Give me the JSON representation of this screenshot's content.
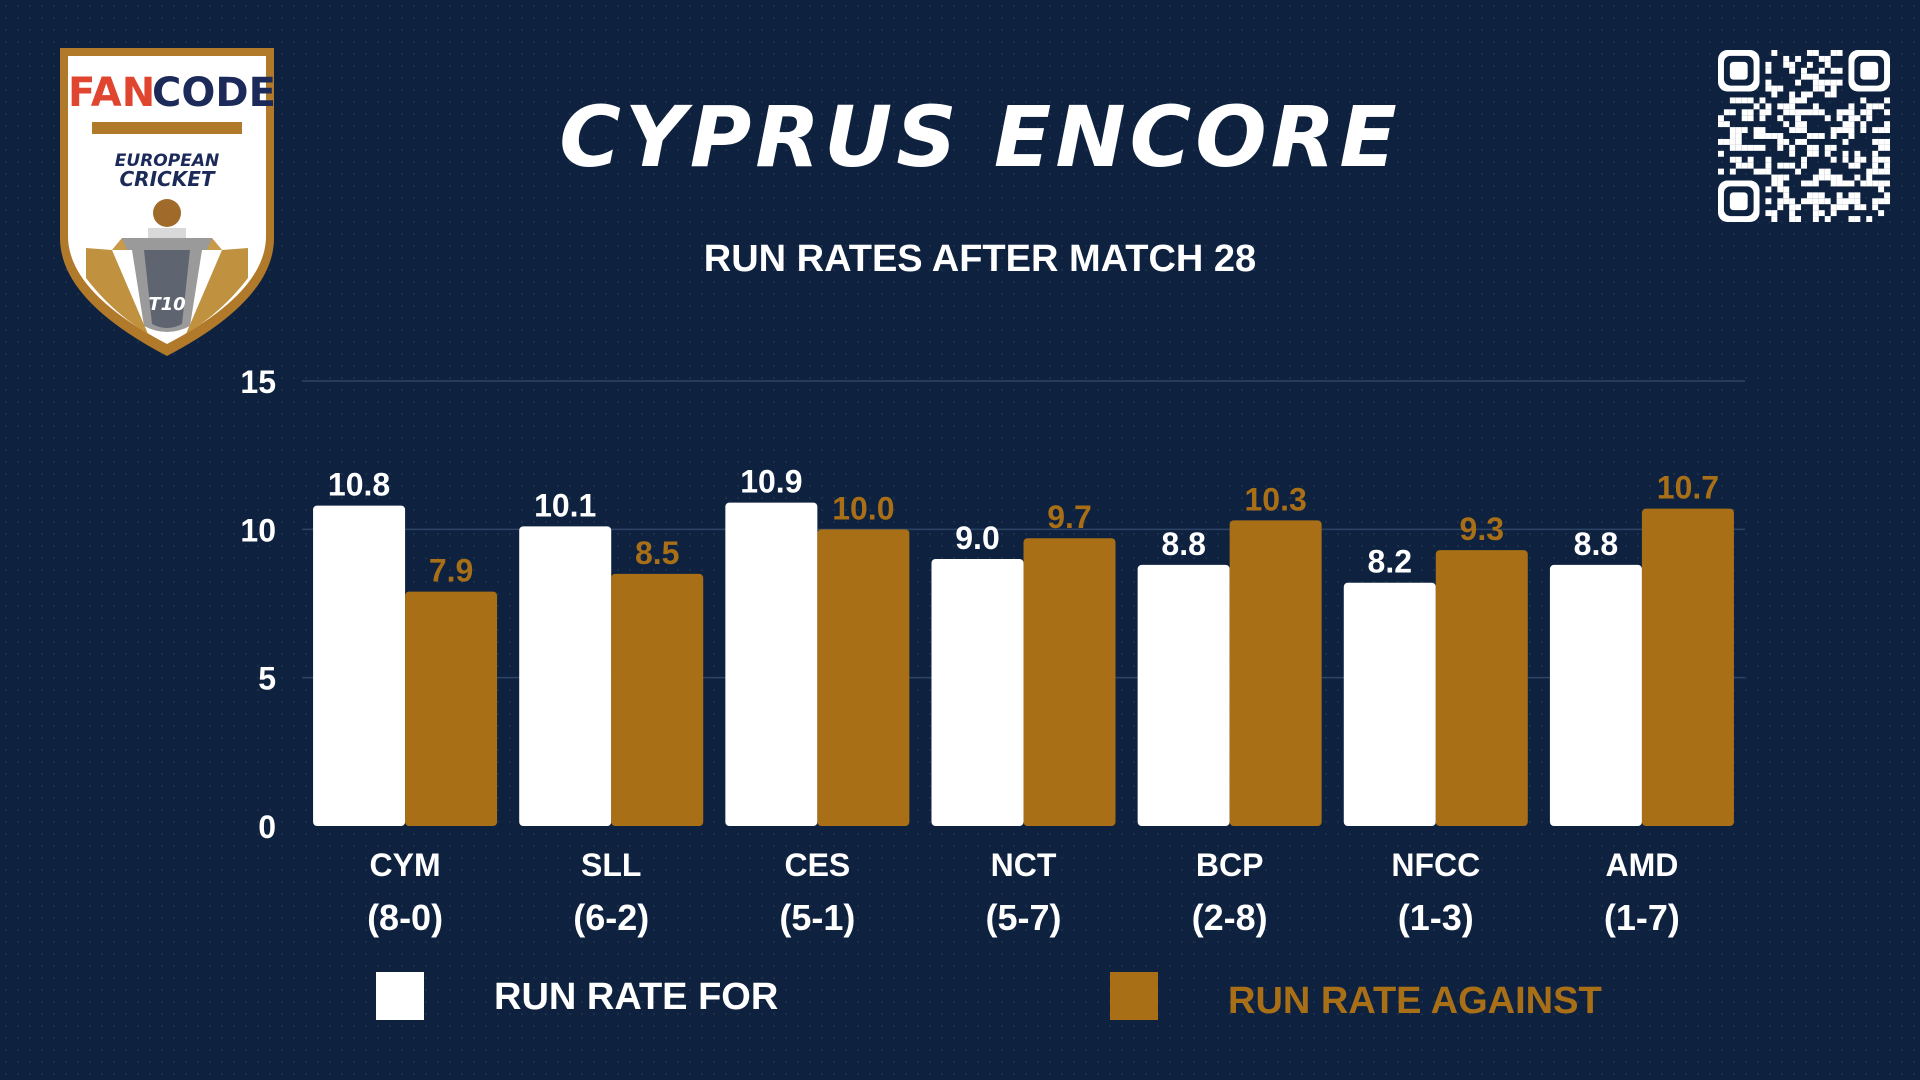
{
  "header": {
    "title": "CYPRUS ENCORE",
    "subtitle": "RUN RATES AFTER MATCH 28"
  },
  "logo": {
    "brand_fan": "FAN",
    "brand_code": "CODE",
    "line1": "EUROPEAN",
    "line2": "CRICKET",
    "badge": "T10",
    "icon": "trophy-shield-icon"
  },
  "qr": {
    "icon": "qr-code-icon"
  },
  "colors": {
    "background": "#0e2240",
    "for": "#ffffff",
    "against": "#a86f17",
    "grid": "#2e4466"
  },
  "chart_data": {
    "type": "bar",
    "title": "RUN RATES AFTER MATCH 28",
    "categories": [
      "CYM",
      "SLL",
      "CES",
      "NCT",
      "BCP",
      "NFCC",
      "AMD"
    ],
    "category_records": [
      "(8-0)",
      "(6-2)",
      "(5-1)",
      "(5-7)",
      "(2-8)",
      "(1-3)",
      "(1-7)"
    ],
    "series": [
      {
        "name": "RUN RATE FOR",
        "values": [
          10.8,
          10.1,
          10.9,
          9.0,
          8.8,
          8.2,
          8.8
        ],
        "labels": [
          "10.8",
          "10.1",
          "10.9",
          "9.0",
          "8.8",
          "8.2",
          "8.8"
        ]
      },
      {
        "name": "RUN RATE AGAINST",
        "values": [
          7.9,
          8.5,
          10.0,
          9.7,
          10.3,
          9.3,
          10.7
        ],
        "labels": [
          "7.9",
          "8.5",
          "10.0",
          "9.7",
          "10.3",
          "9.3",
          "10.7"
        ]
      }
    ],
    "ylim": [
      0,
      15
    ],
    "yticks": [
      0,
      5,
      10,
      15
    ],
    "grid": true,
    "legend_position": "bottom"
  },
  "legend": {
    "for_label": "RUN RATE FOR",
    "against_label": "RUN RATE AGAINST"
  }
}
